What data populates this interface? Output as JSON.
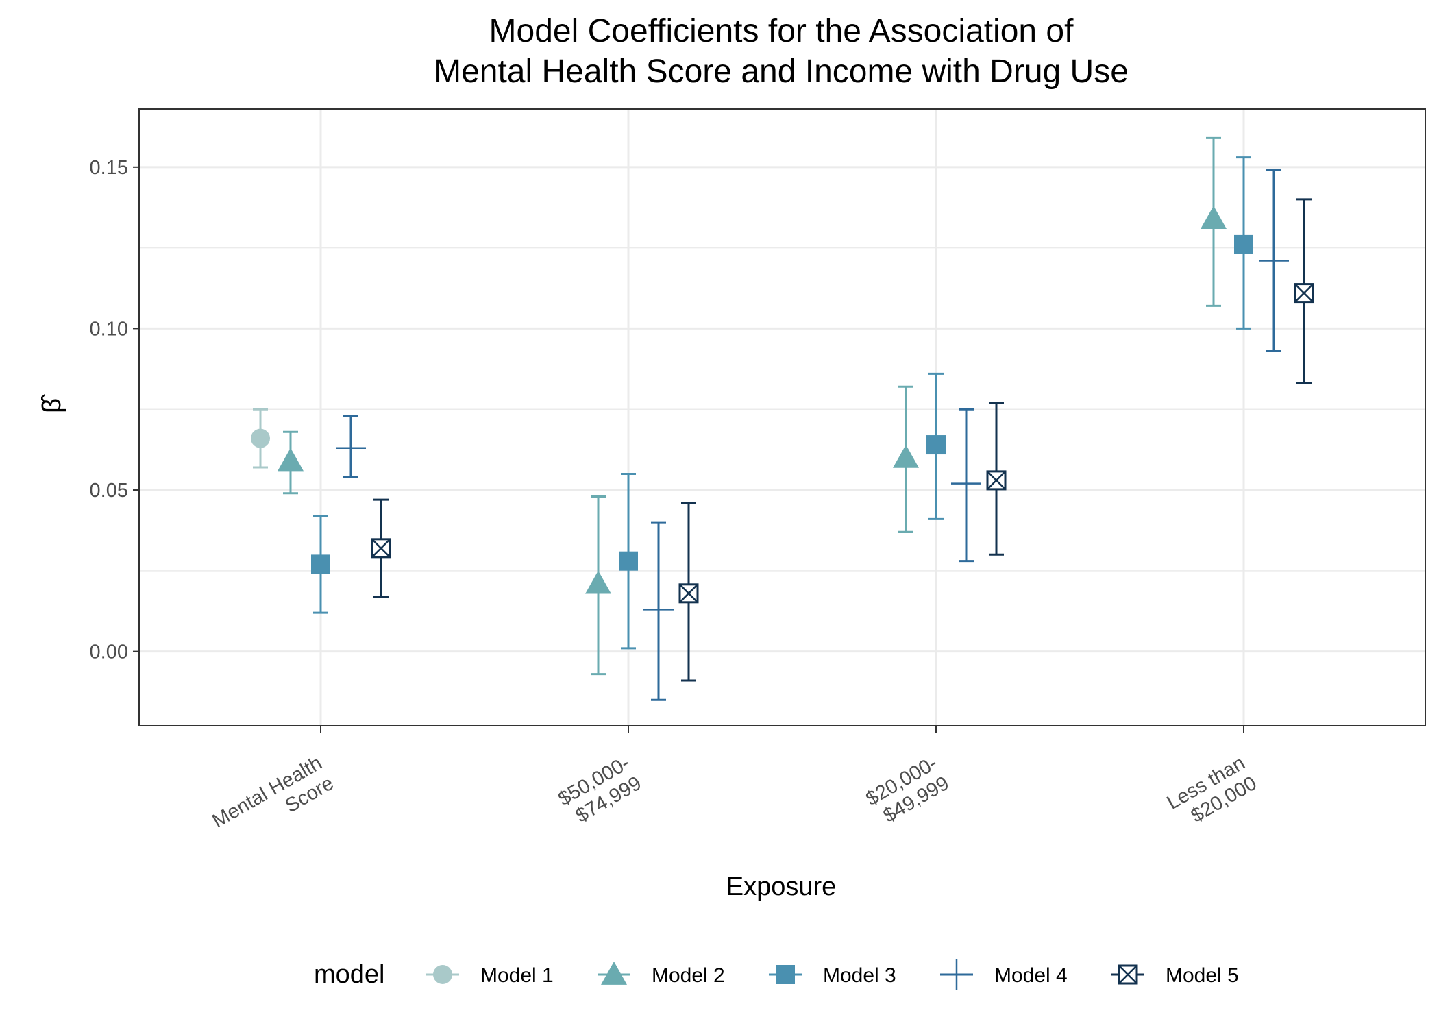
{
  "chart_data": {
    "type": "scatter",
    "title_lines": [
      "Model Coefficients for the Association of",
      "Mental Health Score and Income with Drug Use"
    ],
    "xlabel": "Exposure",
    "ylabel": "β̂",
    "categories": [
      [
        "Mental Health",
        "Score"
      ],
      [
        "$50,000-",
        "$74,999"
      ],
      [
        "$20,000-",
        "$49,999"
      ],
      [
        "Less than",
        "$20,000"
      ]
    ],
    "ylim": [
      -0.023,
      0.168
    ],
    "yticks": [
      0.0,
      0.05,
      0.1,
      0.15
    ],
    "ytick_labels": [
      "0.00",
      "0.05",
      "0.10",
      "0.15"
    ],
    "grid": true,
    "legend_title": "model",
    "legend_position": "bottom",
    "series": [
      {
        "name": "Model 1",
        "color": "#a9c9c9",
        "shape": "circle",
        "estimate": [
          0.066,
          null,
          null,
          null
        ],
        "lower": [
          0.057,
          null,
          null,
          null
        ],
        "upper": [
          0.075,
          null,
          null,
          null
        ]
      },
      {
        "name": "Model 2",
        "color": "#6aabb0",
        "shape": "triangle",
        "estimate": [
          0.059,
          0.021,
          0.06,
          0.134
        ],
        "lower": [
          0.049,
          -0.007,
          0.037,
          0.107
        ],
        "upper": [
          0.068,
          0.048,
          0.082,
          0.159
        ]
      },
      {
        "name": "Model 3",
        "color": "#4a90b0",
        "shape": "square",
        "estimate": [
          0.027,
          0.028,
          0.064,
          0.126
        ],
        "lower": [
          0.012,
          0.001,
          0.041,
          0.1
        ],
        "upper": [
          0.042,
          0.055,
          0.086,
          0.153
        ]
      },
      {
        "name": "Model 4",
        "color": "#2e6a9a",
        "shape": "plus",
        "estimate": [
          0.063,
          0.013,
          0.052,
          0.121
        ],
        "lower": [
          0.054,
          -0.015,
          0.028,
          0.093
        ],
        "upper": [
          0.073,
          0.04,
          0.075,
          0.149
        ]
      },
      {
        "name": "Model 5",
        "color": "#13324f",
        "shape": "boxx",
        "estimate": [
          0.032,
          0.018,
          0.053,
          0.111
        ],
        "lower": [
          0.017,
          -0.009,
          0.03,
          0.083
        ],
        "upper": [
          0.047,
          0.046,
          0.077,
          0.14
        ]
      }
    ]
  }
}
